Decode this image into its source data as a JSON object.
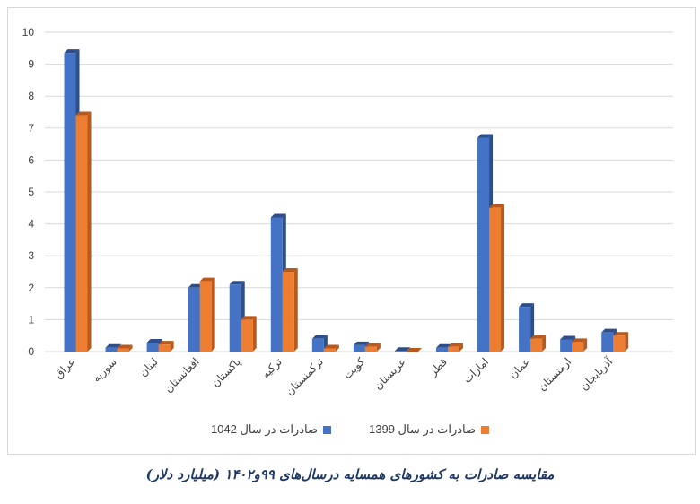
{
  "caption": "مقایسه صادرات به کشورهای همسایه درسال‌های ۹۹و۱۴۰۲ (میلیارد دلار)",
  "chart_data": {
    "type": "bar",
    "categories": [
      "عراق",
      "سوریه",
      "لبنان",
      "افغانستان",
      "پاکستان",
      "ترکیه",
      "ترکمنستان",
      "کویت",
      "عربستان",
      "قطر",
      "امارات",
      "عمان",
      "ارمنستان",
      "آذربایجان"
    ],
    "series": [
      {
        "name": "صادرات در سال 1042",
        "color": "#4472c4",
        "values": [
          9.35,
          0.12,
          0.28,
          2.0,
          2.1,
          4.2,
          0.4,
          0.2,
          0.02,
          0.12,
          6.7,
          1.4,
          0.38,
          0.6
        ]
      },
      {
        "name": "صادرات در سال 1399",
        "color": "#ed7d31",
        "values": [
          7.4,
          0.1,
          0.22,
          2.2,
          1.0,
          2.5,
          0.1,
          0.15,
          0.0,
          0.15,
          4.5,
          0.4,
          0.3,
          0.5
        ]
      }
    ],
    "yticks": [
      0,
      1,
      2,
      3,
      4,
      5,
      6,
      7,
      8,
      9,
      10
    ],
    "ylim": [
      0,
      10
    ],
    "grid": true,
    "legend_position": "bottom"
  }
}
